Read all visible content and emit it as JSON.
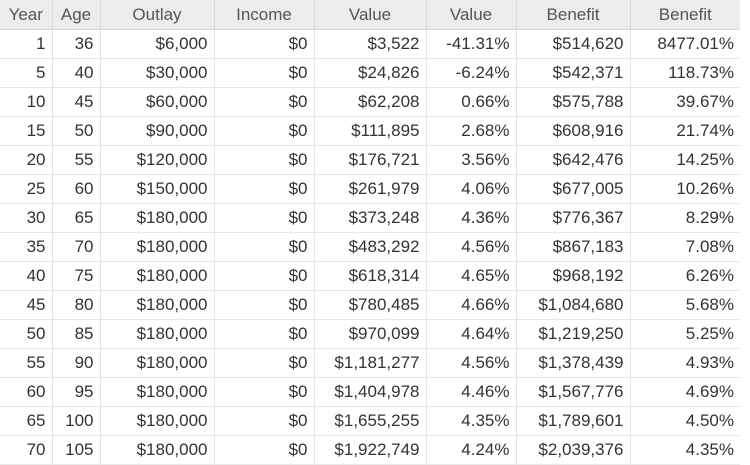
{
  "table": {
    "headers": [
      "Year",
      "Age",
      "Outlay",
      "Income",
      "Value",
      "Value",
      "Benefit",
      "Benefit"
    ],
    "rows": [
      [
        "1",
        "36",
        "$6,000",
        "$0",
        "$3,522",
        "-41.31%",
        "$514,620",
        "8477.01%"
      ],
      [
        "5",
        "40",
        "$30,000",
        "$0",
        "$24,826",
        "-6.24%",
        "$542,371",
        "118.73%"
      ],
      [
        "10",
        "45",
        "$60,000",
        "$0",
        "$62,208",
        "0.66%",
        "$575,788",
        "39.67%"
      ],
      [
        "15",
        "50",
        "$90,000",
        "$0",
        "$111,895",
        "2.68%",
        "$608,916",
        "21.74%"
      ],
      [
        "20",
        "55",
        "$120,000",
        "$0",
        "$176,721",
        "3.56%",
        "$642,476",
        "14.25%"
      ],
      [
        "25",
        "60",
        "$150,000",
        "$0",
        "$261,979",
        "4.06%",
        "$677,005",
        "10.26%"
      ],
      [
        "30",
        "65",
        "$180,000",
        "$0",
        "$373,248",
        "4.36%",
        "$776,367",
        "8.29%"
      ],
      [
        "35",
        "70",
        "$180,000",
        "$0",
        "$483,292",
        "4.56%",
        "$867,183",
        "7.08%"
      ],
      [
        "40",
        "75",
        "$180,000",
        "$0",
        "$618,314",
        "4.65%",
        "$968,192",
        "6.26%"
      ],
      [
        "45",
        "80",
        "$180,000",
        "$0",
        "$780,485",
        "4.66%",
        "$1,084,680",
        "5.68%"
      ],
      [
        "50",
        "85",
        "$180,000",
        "$0",
        "$970,099",
        "4.64%",
        "$1,219,250",
        "5.25%"
      ],
      [
        "55",
        "90",
        "$180,000",
        "$0",
        "$1,181,277",
        "4.56%",
        "$1,378,439",
        "4.93%"
      ],
      [
        "60",
        "95",
        "$180,000",
        "$0",
        "$1,404,978",
        "4.46%",
        "$1,567,776",
        "4.69%"
      ],
      [
        "65",
        "100",
        "$180,000",
        "$0",
        "$1,655,255",
        "4.35%",
        "$1,789,601",
        "4.50%"
      ],
      [
        "70",
        "105",
        "$180,000",
        "$0",
        "$1,922,749",
        "4.24%",
        "$2,039,376",
        "4.35%"
      ]
    ]
  }
}
